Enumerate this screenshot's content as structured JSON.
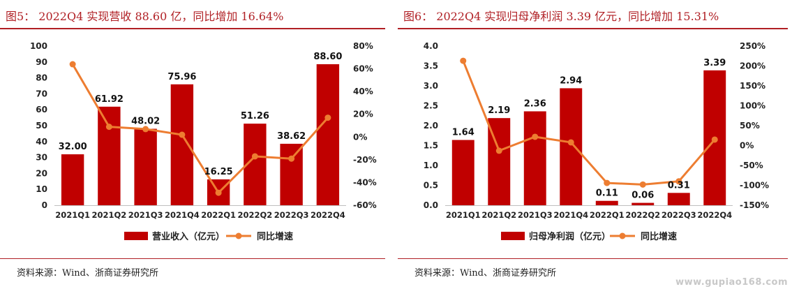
{
  "charts": [
    {
      "title": "图5： 2022Q4 实现营收 88.60 亿，同比增加 16.64%",
      "source": "资料来源：Wind、浙商证券研究所",
      "chart_data": {
        "type": "bar",
        "categories": [
          "2021Q1",
          "2021Q2",
          "2021Q3",
          "2021Q4",
          "2022Q1",
          "2022Q2",
          "2022Q3",
          "2022Q4"
        ],
        "series": [
          {
            "name": "营业收入（亿元）",
            "type": "bar",
            "axis": "left",
            "color": "#c00000",
            "values": [
              32.0,
              61.92,
              48.02,
              75.96,
              16.25,
              51.26,
              38.62,
              88.6
            ],
            "labels": [
              "32.00",
              "61.92",
              "48.02",
              "75.96",
              "16.25",
              "51.26",
              "38.62",
              "88.60"
            ]
          },
          {
            "name": "同比增速",
            "type": "line",
            "axis": "right",
            "color": "#ed7d31",
            "values": [
              64,
              9,
              7,
              2,
              -49,
              -17,
              -19,
              17
            ]
          }
        ],
        "ylim_left": [
          0,
          100
        ],
        "yticks_left": [
          "0",
          "10",
          "20",
          "30",
          "40",
          "50",
          "60",
          "70",
          "80",
          "90",
          "100"
        ],
        "ylim_right": [
          -60,
          80
        ],
        "yticks_right": [
          "-60%",
          "-40%",
          "-20%",
          "0%",
          "20%",
          "40%",
          "60%",
          "80%"
        ],
        "grid": false,
        "legend": "bottom"
      }
    },
    {
      "title": "图6： 2022Q4 实现归母净利润 3.39 亿元，同比增加 15.31%",
      "source": "资料来源：Wind、浙商证券研究所",
      "chart_data": {
        "type": "bar",
        "categories": [
          "2021Q1",
          "2021Q2",
          "2021Q3",
          "2021Q4",
          "2022Q1",
          "2022Q2",
          "2022Q3",
          "2022Q4"
        ],
        "series": [
          {
            "name": "归母净利润（亿元）",
            "type": "bar",
            "axis": "left",
            "color": "#c00000",
            "values": [
              1.64,
              2.19,
              2.36,
              2.94,
              0.11,
              0.06,
              0.31,
              3.39
            ],
            "labels": [
              "1.64",
              "2.19",
              "2.36",
              "2.94",
              "0.11",
              "0.06",
              "0.31",
              "3.39"
            ]
          },
          {
            "name": "同比增速",
            "type": "line",
            "axis": "right",
            "color": "#ed7d31",
            "values": [
              213,
              -13,
              22,
              8,
              -94,
              -98,
              -90,
              15
            ]
          }
        ],
        "ylim_left": [
          0,
          4
        ],
        "yticks_left": [
          "0.0",
          "0.5",
          "1.0",
          "1.5",
          "2.0",
          "2.5",
          "3.0",
          "3.5",
          "4.0"
        ],
        "ylim_right": [
          -150,
          250
        ],
        "yticks_right": [
          "-150%",
          "-100%",
          "-50%",
          "0%",
          "50%",
          "100%",
          "150%",
          "200%",
          "250%"
        ],
        "grid": false,
        "legend": "bottom"
      }
    }
  ],
  "watermark": "www.gupiao168.com"
}
